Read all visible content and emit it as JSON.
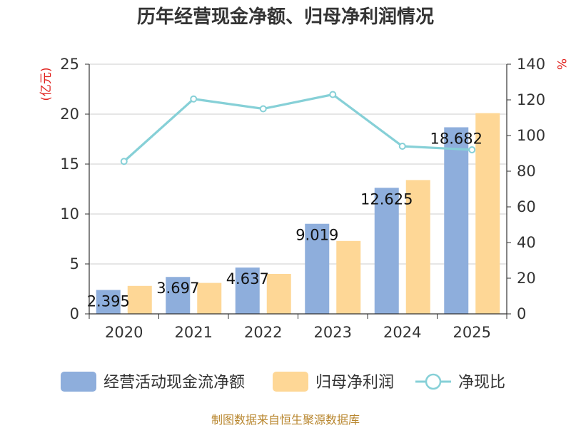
{
  "chart_data": {
    "type": "bar",
    "title": "历年经营现金净额、归母净利润情况",
    "source": "制图数据来自恒生聚源数据库",
    "categories": [
      "2020",
      "2021",
      "2022",
      "2023",
      "2024",
      "2025"
    ],
    "y_left": {
      "unit": "(亿元)",
      "ylim": [
        0,
        25
      ],
      "ticks": [
        "0",
        "5",
        "10",
        "15",
        "20",
        "25"
      ]
    },
    "y_right": {
      "unit": "%",
      "ylim": [
        0,
        140
      ],
      "ticks": [
        "0",
        "20",
        "40",
        "60",
        "80",
        "100",
        "120",
        "140"
      ]
    },
    "grid": true,
    "legend_position": "bottom",
    "series": [
      {
        "name": "经营活动现金流净额",
        "type": "bar",
        "axis": "left",
        "color": "#8eaedc",
        "values": [
          2.395,
          3.697,
          4.637,
          9.019,
          12.625,
          18.682
        ],
        "labels": [
          "2.395",
          "3.697",
          "4.637",
          "9.019",
          "12.625",
          "18.682"
        ]
      },
      {
        "name": "归母净利润",
        "type": "bar",
        "axis": "left",
        "color": "#fed796",
        "values": [
          2.8,
          3.1,
          4.0,
          7.3,
          13.4,
          20.1
        ]
      },
      {
        "name": "净现比",
        "type": "line",
        "axis": "right",
        "color": "#86d0d7",
        "values": [
          85.5,
          120.5,
          115,
          123,
          94,
          92
        ]
      }
    ]
  }
}
